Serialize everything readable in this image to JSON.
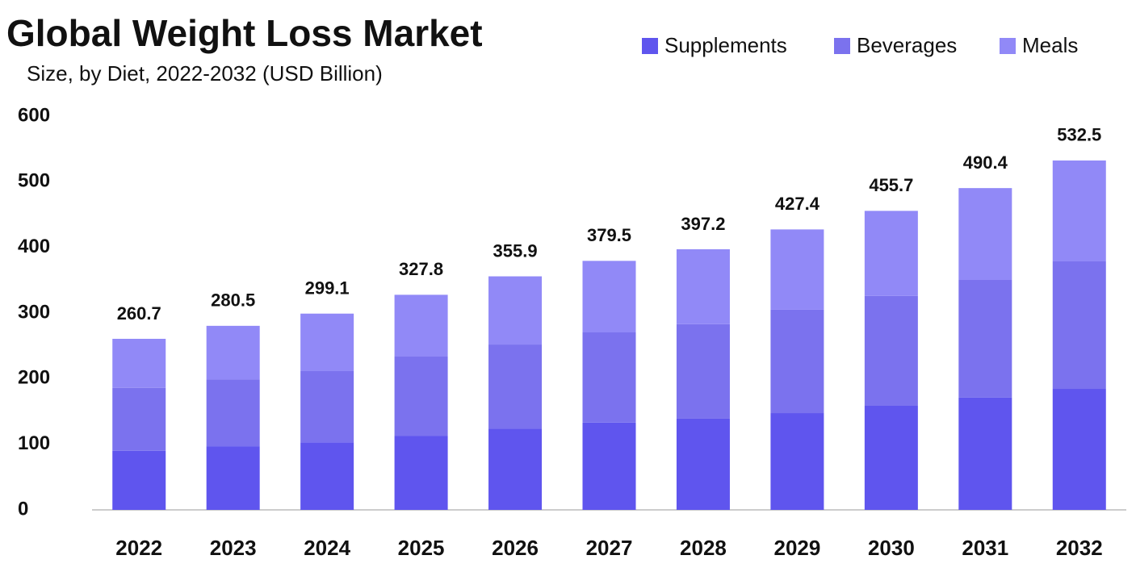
{
  "chart_data": {
    "type": "stacked_bar",
    "title": "Global Weight Loss Market",
    "subtitle": "Size, by Diet, 2022-2032 (USD Billion)",
    "categories": [
      "2022",
      "2023",
      "2024",
      "2025",
      "2026",
      "2027",
      "2028",
      "2029",
      "2030",
      "2031",
      "2032"
    ],
    "series": [
      {
        "name": "Supplements",
        "color": "#5f55ee",
        "values": [
          90,
          97,
          103,
          113,
          124,
          133,
          139,
          147.5,
          158.6,
          171,
          184.4
        ]
      },
      {
        "name": "Beverages",
        "color": "#7b72ee",
        "values": [
          96,
          102,
          108.5,
          120.6,
          128,
          137.5,
          144,
          157.5,
          167.4,
          179.4,
          194.3
        ]
      },
      {
        "name": "Meals",
        "color": "#9189f7",
        "values": [
          74.7,
          81.5,
          87.6,
          94.2,
          103.9,
          109,
          114.2,
          122.4,
          129.7,
          140,
          153.8
        ]
      }
    ],
    "totals": [
      260.7,
      280.5,
      299.1,
      327.8,
      355.9,
      379.5,
      397.2,
      427.4,
      455.7,
      490.4,
      532.5
    ],
    "ylim": [
      0,
      600
    ],
    "yticks": [
      0,
      100,
      200,
      300,
      400,
      500,
      600
    ],
    "grid": false
  }
}
